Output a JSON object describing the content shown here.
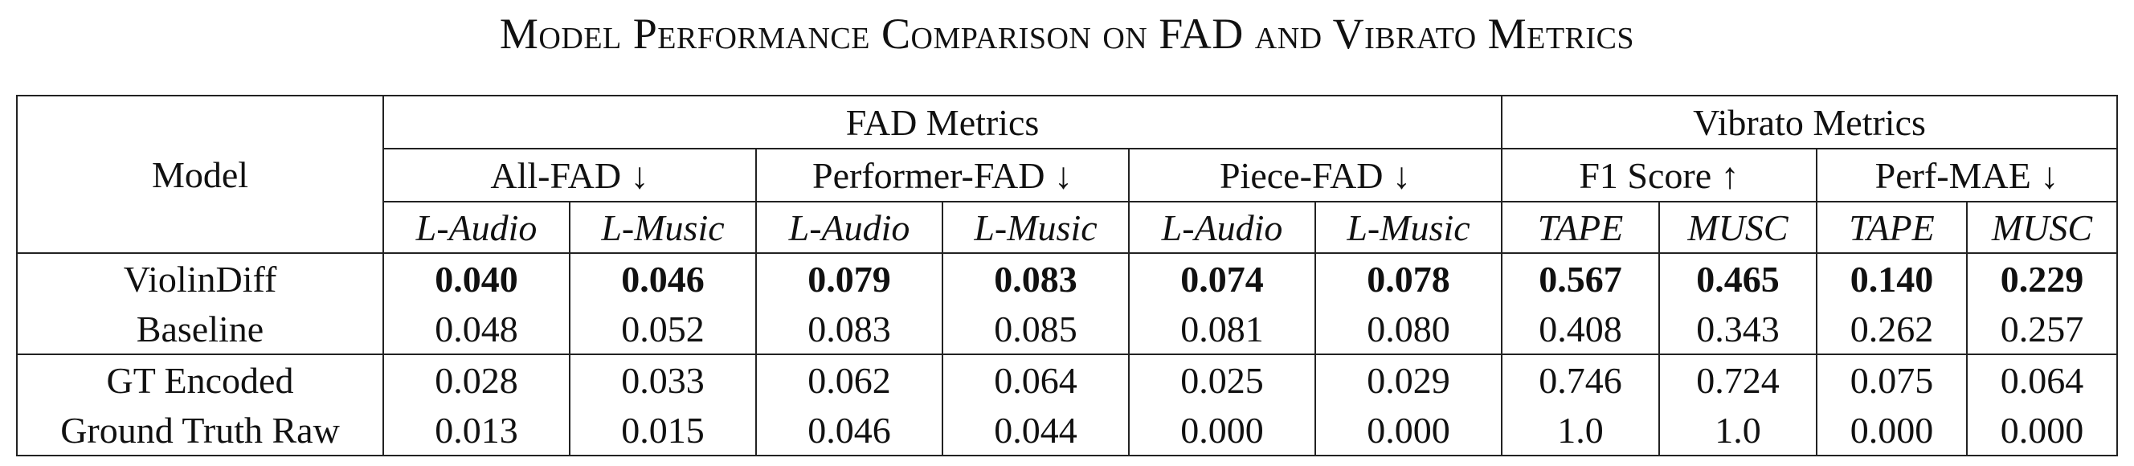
{
  "title": "Model Performance Comparison on FAD and Vibrato Metrics",
  "header": {
    "model": "Model",
    "groups": [
      "FAD Metrics",
      "Vibrato Metrics"
    ],
    "metrics": [
      "All-FAD ↓",
      "Performer-FAD ↓",
      "Piece-FAD ↓",
      "F1 Score ↑",
      "Perf-MAE ↓"
    ],
    "subcolumns": [
      "L-Audio",
      "L-Music",
      "L-Audio",
      "L-Music",
      "L-Audio",
      "L-Music",
      "TAPE",
      "MUSC",
      "TAPE",
      "MUSC"
    ]
  },
  "rows": [
    {
      "model": "ViolinDiff",
      "bold": true,
      "values": [
        "0.040",
        "0.046",
        "0.079",
        "0.083",
        "0.074",
        "0.078",
        "0.567",
        "0.465",
        "0.140",
        "0.229"
      ]
    },
    {
      "model": "Baseline",
      "bold": false,
      "values": [
        "0.048",
        "0.052",
        "0.083",
        "0.085",
        "0.081",
        "0.080",
        "0.408",
        "0.343",
        "0.262",
        "0.257"
      ]
    },
    {
      "model": "GT Encoded",
      "bold": false,
      "values": [
        "0.028",
        "0.033",
        "0.062",
        "0.064",
        "0.025",
        "0.029",
        "0.746",
        "0.724",
        "0.075",
        "0.064"
      ]
    },
    {
      "model": "Ground Truth Raw",
      "bold": false,
      "values": [
        "0.013",
        "0.015",
        "0.046",
        "0.044",
        "0.000",
        "0.000",
        "1.0",
        "1.0",
        "0.000",
        "0.000"
      ]
    }
  ]
}
